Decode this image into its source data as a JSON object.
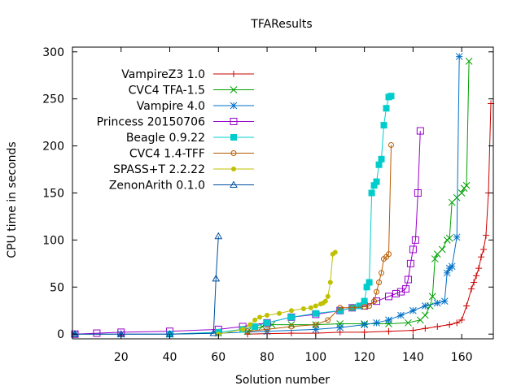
{
  "chart_data": {
    "type": "line",
    "title": "TFAResults",
    "xlabel": "Solution number",
    "ylabel": "CPU time in seconds",
    "xlim": [
      0,
      173
    ],
    "ylim": [
      -5,
      305
    ],
    "xticks": [
      20,
      40,
      60,
      80,
      100,
      120,
      140,
      160
    ],
    "xtick_labels": [
      "20",
      "40",
      "60",
      "80",
      "100",
      "120",
      "140",
      "160"
    ],
    "yticks": [
      0,
      50,
      100,
      150,
      200,
      250,
      300
    ],
    "ytick_labels": [
      "0",
      "50",
      "100",
      "150",
      "200",
      "250",
      "300"
    ],
    "grid": false,
    "legend_position": "top-left",
    "series": [
      {
        "name": "VampireZ3 1.0",
        "color": "#cc0000",
        "marker": "plus",
        "x": [
          72,
          80,
          90,
          100,
          110,
          120,
          130,
          140,
          145,
          150,
          155,
          158,
          160,
          162,
          164,
          165,
          166,
          167,
          168,
          169,
          170,
          171,
          172
        ],
        "y": [
          0,
          0.5,
          1,
          1,
          2,
          2,
          3,
          4,
          6,
          8,
          10,
          12,
          15,
          30,
          48,
          55,
          62,
          70,
          82,
          90,
          105,
          150,
          245
        ]
      },
      {
        "name": "CVC4 TFA-1.5",
        "color": "#00a000",
        "marker": "x",
        "x": [
          72,
          78,
          82,
          90,
          100,
          110,
          120,
          130,
          138,
          143,
          145,
          147,
          148,
          149,
          150,
          152,
          154,
          155,
          156,
          158,
          160,
          161,
          162,
          163
        ],
        "y": [
          3,
          8,
          10,
          10,
          10,
          11,
          11,
          11,
          12,
          15,
          20,
          30,
          40,
          80,
          85,
          90,
          100,
          102,
          140,
          145,
          150,
          155,
          158,
          290
        ]
      },
      {
        "name": "Vampire 4.0",
        "color": "#0070c8",
        "marker": "star",
        "x": [
          1,
          20,
          40,
          60,
          80,
          100,
          110,
          120,
          125,
          130,
          135,
          140,
          145,
          150,
          153,
          154,
          155,
          156,
          158,
          159
        ],
        "y": [
          0,
          0,
          0,
          1,
          3,
          5,
          7,
          10,
          12,
          15,
          20,
          25,
          30,
          33,
          35,
          65,
          70,
          72,
          103,
          295
        ]
      },
      {
        "name": "Princess 20150706",
        "color": "#9900cc",
        "marker": "square",
        "x": [
          1,
          10,
          20,
          40,
          60,
          70,
          80,
          90,
          100,
          110,
          115,
          120,
          125,
          130,
          133,
          135,
          137,
          138,
          139,
          140,
          141,
          142,
          143
        ],
        "y": [
          0,
          1,
          2,
          3,
          5,
          8,
          12,
          18,
          21,
          25,
          28,
          30,
          35,
          40,
          43,
          45,
          48,
          58,
          75,
          90,
          100,
          150,
          216
        ]
      },
      {
        "name": "Beagle 0.9.22",
        "color": "#00cccc",
        "marker": "filled-square",
        "x": [
          40,
          60,
          70,
          75,
          80,
          90,
          100,
          110,
          115,
          118,
          120,
          121,
          122,
          123,
          124,
          125,
          126,
          127,
          128,
          129,
          130,
          131
        ],
        "y": [
          0,
          2,
          5,
          8,
          12,
          18,
          22,
          25,
          28,
          30,
          35,
          50,
          55,
          150,
          158,
          162,
          180,
          186,
          222,
          240,
          252,
          253
        ]
      },
      {
        "name": "CVC4 1.4-TFF",
        "color": "#b85a00",
        "marker": "circle",
        "x": [
          72,
          80,
          90,
          100,
          105,
          110,
          115,
          120,
          122,
          124,
          125,
          126,
          127,
          128,
          129,
          130,
          131
        ],
        "y": [
          3,
          5,
          8,
          10,
          15,
          28,
          28,
          29,
          30,
          35,
          45,
          55,
          65,
          80,
          82,
          85,
          201
        ]
      },
      {
        "name": "SPASS+T 2.2.22",
        "color": "#c0c000",
        "marker": "filled-circle",
        "x": [
          60,
          70,
          73,
          75,
          77,
          80,
          85,
          90,
          95,
          98,
          100,
          102,
          103,
          104,
          105,
          106,
          107,
          108
        ],
        "y": [
          0,
          5,
          10,
          15,
          18,
          20,
          22,
          25,
          27,
          28,
          30,
          32,
          33,
          35,
          40,
          55,
          85,
          87
        ]
      },
      {
        "name": "ZenonArith 0.1.0",
        "color": "#0050a0",
        "marker": "triangle",
        "x": [
          1,
          20,
          40,
          58,
          59,
          60
        ],
        "y": [
          0,
          0,
          0,
          1,
          59,
          104
        ]
      }
    ]
  }
}
